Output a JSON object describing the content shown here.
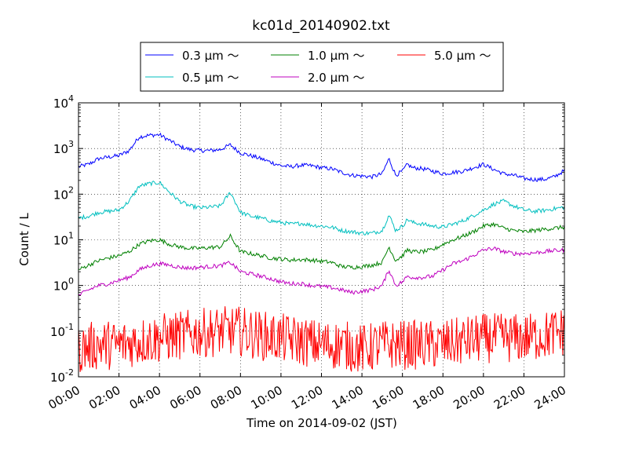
{
  "chart_data": {
    "type": "line",
    "title": "kc01d_20140902.txt",
    "xlabel": "Time on 2014-09-02 (JST)",
    "ylabel": "Count / L",
    "yscale": "log",
    "ylim": [
      0.01,
      10000
    ],
    "xlim_hours": [
      0,
      24
    ],
    "x_ticks": [
      "00:00",
      "02:00",
      "04:00",
      "06:00",
      "08:00",
      "10:00",
      "12:00",
      "14:00",
      "16:00",
      "18:00",
      "20:00",
      "22:00",
      "24:00"
    ],
    "y_ticks": [
      {
        "base": "10",
        "exp": "-2",
        "value": 0.01
      },
      {
        "base": "10",
        "exp": "-1",
        "value": 0.1
      },
      {
        "base": "10",
        "exp": "0",
        "value": 1
      },
      {
        "base": "10",
        "exp": "1",
        "value": 10
      },
      {
        "base": "10",
        "exp": "2",
        "value": 100
      },
      {
        "base": "10",
        "exp": "3",
        "value": 1000
      },
      {
        "base": "10",
        "exp": "4",
        "value": 10000
      }
    ],
    "grid": true,
    "legend_position": "top-center",
    "series": [
      {
        "name": "0.3 μm ～",
        "color": "#0000ff",
        "x": [
          "00:00",
          "00:30",
          "01:00",
          "01:30",
          "02:00",
          "02:30",
          "03:00",
          "03:30",
          "04:00",
          "04:30",
          "05:00",
          "05:30",
          "06:00",
          "06:30",
          "07:00",
          "07:30",
          "08:00",
          "08:30",
          "09:00",
          "09:30",
          "10:00",
          "10:30",
          "11:00",
          "11:30",
          "12:00",
          "12:30",
          "13:00",
          "13:30",
          "14:00",
          "14:30",
          "15:00",
          "15:20",
          "15:40",
          "16:00",
          "16:15",
          "16:30",
          "17:00",
          "17:30",
          "18:00",
          "18:30",
          "19:00",
          "19:30",
          "20:00",
          "20:30",
          "21:00",
          "21:30",
          "22:00",
          "22:30",
          "23:00",
          "23:30",
          "24:00"
        ],
        "y": [
          400,
          450,
          600,
          650,
          700,
          900,
          1800,
          1950,
          2000,
          1500,
          1100,
          950,
          900,
          900,
          950,
          1200,
          800,
          700,
          600,
          500,
          420,
          400,
          430,
          420,
          380,
          360,
          300,
          260,
          250,
          240,
          280,
          600,
          260,
          320,
          450,
          380,
          360,
          320,
          280,
          300,
          320,
          380,
          450,
          350,
          280,
          260,
          220,
          210,
          210,
          240,
          330
        ]
      },
      {
        "name": "0.5 μm ～",
        "color": "#00bfbf",
        "x": [
          "00:00",
          "00:30",
          "01:00",
          "01:30",
          "02:00",
          "02:30",
          "03:00",
          "03:30",
          "04:00",
          "04:30",
          "05:00",
          "05:30",
          "06:00",
          "06:30",
          "07:00",
          "07:30",
          "08:00",
          "08:30",
          "09:00",
          "09:30",
          "10:00",
          "10:30",
          "11:00",
          "11:30",
          "12:00",
          "12:30",
          "13:00",
          "13:30",
          "14:00",
          "14:30",
          "15:00",
          "15:20",
          "15:40",
          "16:00",
          "16:15",
          "16:30",
          "17:00",
          "17:30",
          "18:00",
          "18:30",
          "19:00",
          "19:30",
          "20:00",
          "20:30",
          "21:00",
          "21:30",
          "22:00",
          "22:30",
          "23:00",
          "23:30",
          "24:00"
        ],
        "y": [
          30,
          33,
          40,
          42,
          45,
          70,
          150,
          170,
          180,
          110,
          70,
          55,
          50,
          52,
          55,
          110,
          40,
          33,
          30,
          26,
          24,
          22,
          23,
          21,
          20,
          19,
          16,
          15,
          14,
          14,
          16,
          35,
          16,
          20,
          28,
          24,
          22,
          20,
          19,
          22,
          26,
          34,
          45,
          60,
          70,
          55,
          45,
          42,
          44,
          48,
          52
        ]
      },
      {
        "name": "1.0 μm ～",
        "color": "#008000",
        "x": [
          "00:00",
          "00:30",
          "01:00",
          "01:30",
          "02:00",
          "02:30",
          "03:00",
          "03:30",
          "04:00",
          "04:30",
          "05:00",
          "05:30",
          "06:00",
          "06:30",
          "07:00",
          "07:30",
          "08:00",
          "08:30",
          "09:00",
          "09:30",
          "10:00",
          "10:30",
          "11:00",
          "11:30",
          "12:00",
          "12:30",
          "13:00",
          "13:30",
          "14:00",
          "14:30",
          "15:00",
          "15:20",
          "15:40",
          "16:00",
          "16:15",
          "16:30",
          "17:00",
          "17:30",
          "18:00",
          "18:30",
          "19:00",
          "19:30",
          "20:00",
          "20:30",
          "21:00",
          "21:30",
          "22:00",
          "22:30",
          "23:00",
          "23:30",
          "24:00"
        ],
        "y": [
          2.2,
          2.8,
          3.5,
          4,
          4.5,
          5.5,
          8,
          9.5,
          10,
          8,
          7,
          6.5,
          6.5,
          6.8,
          7,
          12,
          5.5,
          5,
          4.5,
          4,
          3.8,
          3.6,
          3.7,
          3.6,
          3.4,
          3.2,
          2.6,
          2.5,
          2.6,
          2.8,
          3.2,
          7,
          3.5,
          4.5,
          6,
          5.5,
          5.5,
          6,
          8,
          10,
          12,
          15,
          20,
          22,
          18,
          16,
          15,
          16,
          17,
          18,
          19
        ]
      },
      {
        "name": "2.0 μm ～",
        "color": "#bf00bf",
        "x": [
          "00:00",
          "00:30",
          "01:00",
          "01:30",
          "02:00",
          "02:30",
          "03:00",
          "03:30",
          "04:00",
          "04:30",
          "05:00",
          "05:30",
          "06:00",
          "06:30",
          "07:00",
          "07:30",
          "08:00",
          "08:30",
          "09:00",
          "09:30",
          "10:00",
          "10:30",
          "11:00",
          "11:30",
          "12:00",
          "12:30",
          "13:00",
          "13:30",
          "14:00",
          "14:30",
          "15:00",
          "15:20",
          "15:40",
          "16:00",
          "16:15",
          "16:30",
          "17:00",
          "17:30",
          "18:00",
          "18:30",
          "19:00",
          "19:30",
          "20:00",
          "20:30",
          "21:00",
          "21:30",
          "22:00",
          "22:30",
          "23:00",
          "23:30",
          "24:00"
        ],
        "y": [
          0.6,
          0.8,
          1,
          1.1,
          1.3,
          1.5,
          2.2,
          2.7,
          3,
          2.8,
          2.5,
          2.4,
          2.5,
          2.6,
          2.7,
          3.2,
          2,
          1.8,
          1.6,
          1.4,
          1.2,
          1.1,
          1.1,
          1.0,
          0.95,
          0.9,
          0.8,
          0.7,
          0.75,
          0.8,
          1.0,
          2.2,
          1.0,
          1.2,
          1.6,
          1.5,
          1.5,
          1.6,
          2.2,
          3,
          3.5,
          4.5,
          6,
          6.5,
          5.5,
          5,
          5,
          5.2,
          5.5,
          5.8,
          6
        ]
      },
      {
        "name": "5.0 μm ～",
        "color": "#ff0000",
        "x": [
          "00:00",
          "01:00",
          "02:00",
          "03:00",
          "04:00",
          "05:00",
          "06:00",
          "07:00",
          "08:00",
          "09:00",
          "10:00",
          "11:00",
          "12:00",
          "13:00",
          "14:00",
          "15:00",
          "16:00",
          "17:00",
          "18:00",
          "19:00",
          "20:00",
          "21:00",
          "22:00",
          "23:00",
          "24:00"
        ],
        "y": [
          0.04,
          0.05,
          0.05,
          0.06,
          0.07,
          0.08,
          0.09,
          0.1,
          0.1,
          0.08,
          0.07,
          0.06,
          0.05,
          0.05,
          0.04,
          0.05,
          0.05,
          0.05,
          0.05,
          0.06,
          0.07,
          0.07,
          0.07,
          0.08,
          0.1
        ]
      }
    ]
  }
}
